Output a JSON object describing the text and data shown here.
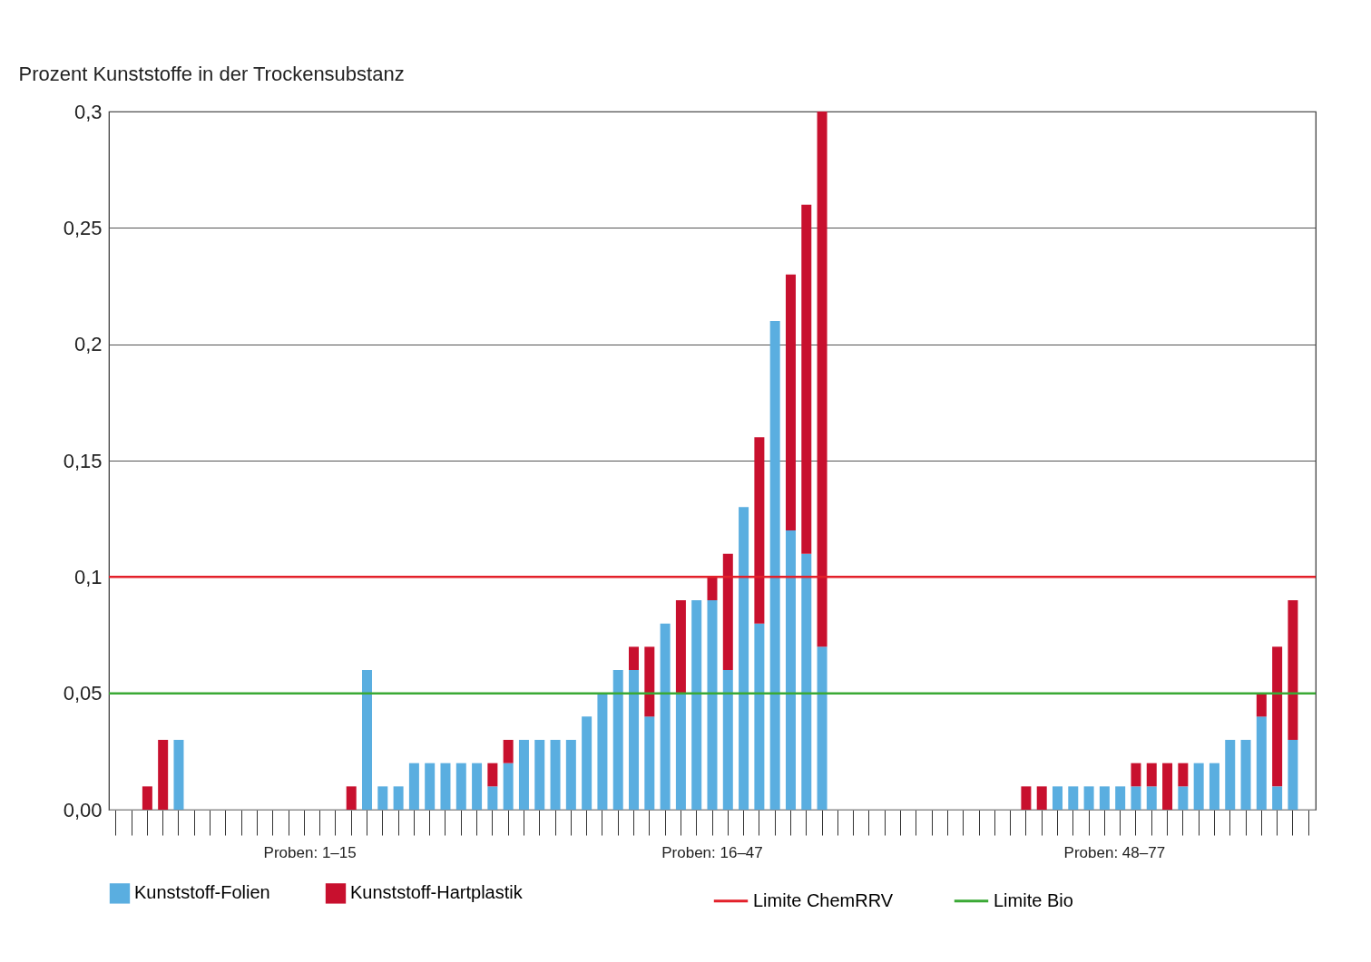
{
  "chart_data": {
    "type": "bar",
    "stacked": true,
    "ylabel": "Prozent Kunststoffe in der Trockensubstanz",
    "categories": [
      null,
      null,
      null,
      null,
      null,
      null,
      null,
      null,
      null,
      null,
      null,
      null,
      null,
      null,
      null,
      null,
      null,
      null,
      null,
      null,
      null,
      null,
      null,
      null,
      null,
      null,
      null,
      null,
      null,
      null,
      null,
      null,
      null,
      null,
      null,
      null,
      null,
      null,
      null,
      null,
      null,
      null,
      null,
      null,
      null,
      null,
      null,
      null,
      null,
      null,
      null,
      null,
      null,
      null,
      null,
      null,
      null,
      null,
      null,
      null,
      null,
      null,
      null,
      null,
      null,
      null,
      null,
      null,
      null,
      null,
      null,
      null,
      null,
      null,
      null,
      null,
      null
    ],
    "series": [
      {
        "name": "Kunststoff-Folien",
        "color": "#5aaee0",
        "values": [
          null,
          null,
          null,
          null,
          0.03,
          null,
          null,
          null,
          null,
          null,
          null,
          null,
          null,
          null,
          null,
          null,
          0.06,
          0.01,
          0.01,
          0.02,
          0.02,
          0.02,
          0.02,
          0.02,
          0.01,
          0.02,
          0.03,
          0.03,
          0.03,
          0.03,
          0.04,
          0.05,
          0.06,
          0.06,
          0.04,
          0.08,
          0.05,
          0.09,
          0.09,
          0.06,
          0.13,
          0.08,
          0.21,
          0.12,
          0.11,
          0.07,
          null,
          null,
          null,
          null,
          null,
          null,
          null,
          null,
          null,
          null,
          null,
          null,
          null,
          null,
          0.01,
          0.01,
          0.01,
          0.01,
          0.01,
          0.01,
          0.01,
          null,
          0.01,
          0.02,
          0.02,
          0.03,
          0.03,
          0.04,
          0.01,
          0.03,
          null
        ]
      },
      {
        "name": "Kunststoff-Hartplastik",
        "color": "#c8102e",
        "values": [
          null,
          null,
          0.01,
          0.03,
          null,
          null,
          null,
          null,
          null,
          null,
          null,
          null,
          null,
          null,
          null,
          0.01,
          null,
          null,
          null,
          null,
          null,
          null,
          null,
          null,
          0.01,
          0.01,
          null,
          null,
          null,
          null,
          null,
          null,
          null,
          0.01,
          0.03,
          null,
          0.04,
          null,
          0.01,
          0.05,
          null,
          0.08,
          null,
          0.11,
          0.15,
          0.23,
          null,
          null,
          null,
          null,
          null,
          null,
          null,
          null,
          null,
          null,
          null,
          null,
          0.01,
          0.01,
          null,
          null,
          null,
          null,
          null,
          0.01,
          0.01,
          0.02,
          0.01,
          null,
          null,
          null,
          null,
          0.01,
          0.06,
          0.06,
          null
        ]
      }
    ],
    "ylim": [
      0,
      0.3
    ],
    "yticks": [
      {
        "value": 0,
        "label": "0,00"
      },
      {
        "value": 0.05,
        "label": "0,05"
      },
      {
        "value": 0.1,
        "label": "0,1"
      },
      {
        "value": 0.15,
        "label": "0,15"
      },
      {
        "value": 0.2,
        "label": "0,2"
      },
      {
        "value": 0.25,
        "label": "0,25"
      },
      {
        "value": 0.3,
        "label": "0,3"
      }
    ],
    "grid": "y",
    "tick_labels": "y",
    "legend": "bottom",
    "ref_lines": [
      {
        "axis": "y",
        "value": 0.1,
        "label": "Limite ChemRRV",
        "color": "#e3202a"
      },
      {
        "axis": "y",
        "value": 0.05,
        "label": "Limite Bio",
        "color": "#3aa935"
      }
    ],
    "annotations": [
      "Proben: 1–15",
      "Proben: 16–47",
      "Proben: 48–77"
    ]
  }
}
